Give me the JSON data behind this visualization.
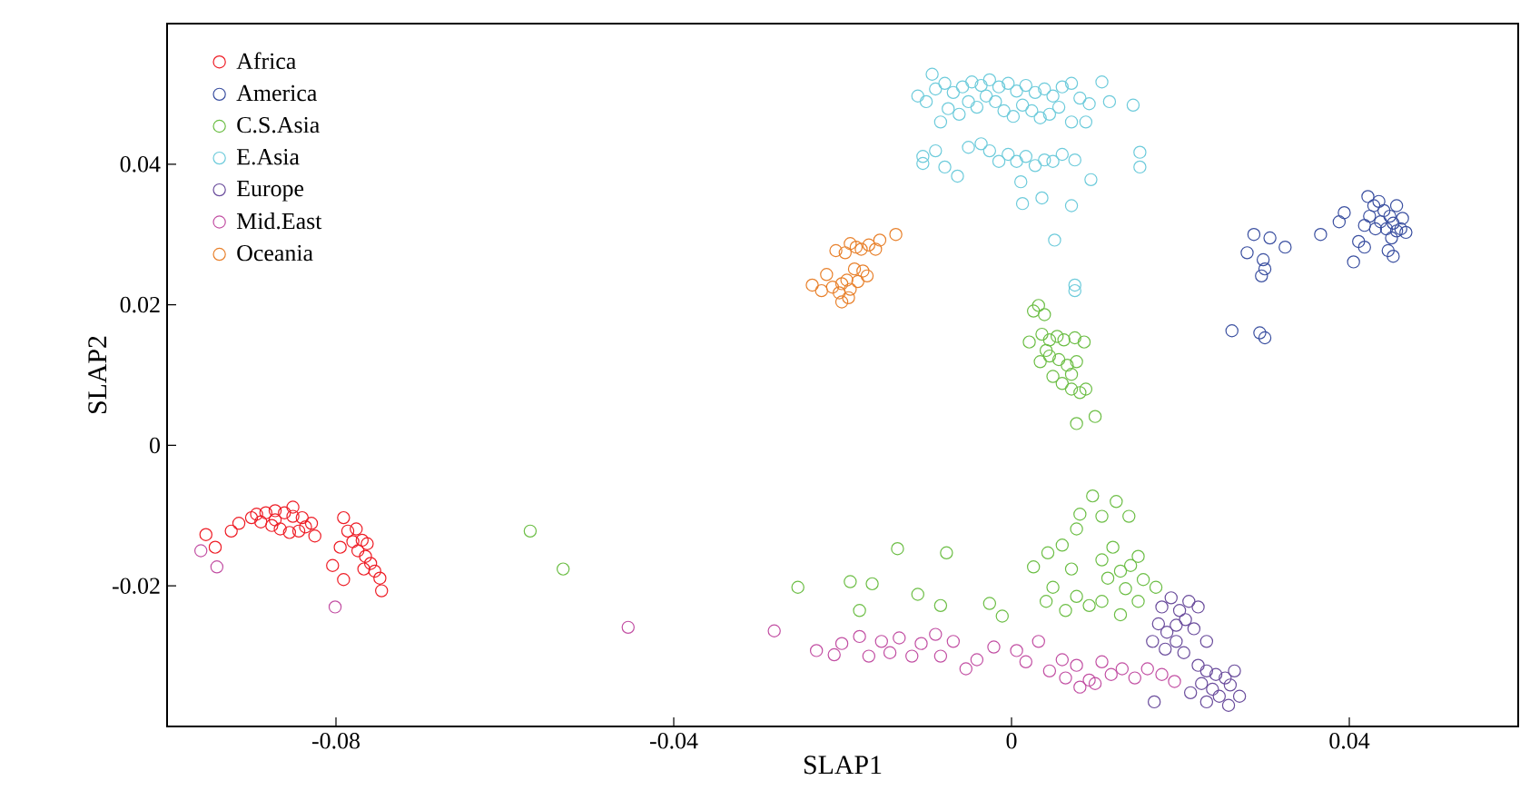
{
  "chart_data": {
    "type": "scatter",
    "xlabel": "SLAP1",
    "ylabel": "SLAP2",
    "xlim": [
      -0.1,
      0.06
    ],
    "ylim": [
      -0.04,
      0.06
    ],
    "xticks": [
      -0.08,
      -0.04,
      0,
      0.04
    ],
    "yticks": [
      -0.02,
      0,
      0.02,
      0.04
    ],
    "marker": "circle",
    "legend": "top left",
    "grid": false,
    "series": [
      {
        "name": "Africa",
        "color": "#ee1c25",
        "x": [
          -0.0954,
          -0.0943,
          -0.0924,
          -0.0915,
          -0.09,
          -0.0894,
          -0.0883,
          -0.0872,
          -0.0861,
          -0.0851,
          -0.084,
          -0.0829,
          -0.0889,
          -0.0876,
          -0.0866,
          -0.0855,
          -0.0844,
          -0.0836,
          -0.0851,
          -0.0872,
          -0.0825,
          -0.0804,
          -0.0791,
          -0.0786,
          -0.078,
          -0.0774,
          -0.0765,
          -0.0759,
          -0.0754,
          -0.0748,
          -0.0746,
          -0.0769,
          -0.0763,
          -0.0795,
          -0.0791,
          -0.0776,
          -0.0767
        ],
        "values": [
          -0.0127,
          -0.0145,
          -0.0122,
          -0.0111,
          -0.0103,
          -0.0098,
          -0.0096,
          -0.0093,
          -0.0096,
          -0.0101,
          -0.0103,
          -0.0111,
          -0.0109,
          -0.0114,
          -0.0119,
          -0.0124,
          -0.0122,
          -0.0116,
          -0.0088,
          -0.0106,
          -0.0129,
          -0.0171,
          -0.0103,
          -0.0122,
          -0.0137,
          -0.015,
          -0.0158,
          -0.0168,
          -0.0179,
          -0.0189,
          -0.0207,
          -0.0135,
          -0.014,
          -0.0145,
          -0.0191,
          -0.0119,
          -0.0176
        ]
      },
      {
        "name": "America",
        "color": "#3a4fa0",
        "x": [
          0.0261,
          0.0294,
          0.03,
          0.0296,
          0.03,
          0.0279,
          0.0287,
          0.0306,
          0.0298,
          0.0324,
          0.0366,
          0.0388,
          0.0394,
          0.0405,
          0.0418,
          0.0424,
          0.0429,
          0.0435,
          0.0441,
          0.0448,
          0.0452,
          0.0456,
          0.0461,
          0.0467,
          0.0444,
          0.0431,
          0.0418,
          0.0437,
          0.045,
          0.0456,
          0.0463,
          0.0422,
          0.0446,
          0.0452,
          0.0411
        ],
        "values": [
          0.0163,
          0.016,
          0.0153,
          0.0241,
          0.0251,
          0.0274,
          0.03,
          0.0295,
          0.0264,
          0.0282,
          0.03,
          0.0318,
          0.0331,
          0.0261,
          0.0282,
          0.0326,
          0.0341,
          0.0347,
          0.0334,
          0.0326,
          0.0316,
          0.0305,
          0.0308,
          0.0303,
          0.0308,
          0.0308,
          0.0313,
          0.0318,
          0.0295,
          0.0341,
          0.0323,
          0.0354,
          0.0277,
          0.0269,
          0.029
        ]
      },
      {
        "name": "C.S.Asia",
        "color": "#6cbe45",
        "x": [
          0.0026,
          0.0032,
          0.0039,
          0.0021,
          0.0036,
          0.0045,
          0.0054,
          0.0062,
          0.0075,
          0.0086,
          0.0034,
          0.0045,
          0.0056,
          0.0066,
          0.0077,
          0.0049,
          0.006,
          0.0071,
          0.0081,
          0.0088,
          0.0077,
          0.0099,
          0.0041,
          0.0071,
          -0.057,
          -0.0531,
          -0.0253,
          -0.0191,
          -0.0165,
          -0.018,
          -0.0135,
          -0.0077,
          -0.0111,
          -0.0084,
          -0.0026,
          -0.0011,
          0.0026,
          0.0043,
          0.006,
          0.0077,
          0.0096,
          0.0081,
          0.0107,
          0.0124,
          0.0139,
          0.0049,
          0.0041,
          0.0064,
          0.0077,
          0.0092,
          0.0114,
          0.0129,
          0.0141,
          0.0156,
          0.0107,
          0.012,
          0.0135,
          0.015,
          0.0171,
          0.0107,
          0.0071,
          0.015,
          0.0129
        ],
        "values": [
          0.0191,
          0.0199,
          0.0186,
          0.0147,
          0.0158,
          0.015,
          0.0155,
          0.015,
          0.0153,
          0.0147,
          0.0119,
          0.0127,
          0.0122,
          0.0114,
          0.0119,
          0.0098,
          0.0088,
          0.008,
          0.0075,
          0.008,
          0.0031,
          0.0041,
          0.0135,
          0.0101,
          -0.0122,
          -0.0176,
          -0.0202,
          -0.0194,
          -0.0197,
          -0.0235,
          -0.0147,
          -0.0153,
          -0.0212,
          -0.0228,
          -0.0225,
          -0.0243,
          -0.0173,
          -0.0153,
          -0.0142,
          -0.0119,
          -0.0072,
          -0.0098,
          -0.0101,
          -0.008,
          -0.0101,
          -0.0202,
          -0.0222,
          -0.0235,
          -0.0215,
          -0.0228,
          -0.0189,
          -0.0179,
          -0.0171,
          -0.0191,
          -0.0163,
          -0.0145,
          -0.0204,
          -0.0222,
          -0.0202,
          -0.0222,
          -0.0176,
          -0.0158,
          -0.0241
        ]
      },
      {
        "name": "E.Asia",
        "color": "#6dcbdb",
        "x": [
          -0.0111,
          -0.0101,
          -0.009,
          -0.0079,
          -0.0069,
          -0.0058,
          -0.0047,
          -0.0036,
          -0.0026,
          -0.0015,
          -0.0004,
          0.0006,
          0.0017,
          0.0028,
          0.0039,
          0.0049,
          0.006,
          0.0071,
          0.0081,
          0.0092,
          0.0107,
          0.0116,
          0.0144,
          -0.0094,
          -0.0084,
          -0.0075,
          -0.0062,
          -0.0051,
          -0.0041,
          -0.003,
          -0.0019,
          -0.0009,
          0.0002,
          0.0013,
          0.0024,
          0.0034,
          0.0045,
          0.0056,
          0.0071,
          0.0088,
          -0.0105,
          -0.0105,
          -0.009,
          -0.0079,
          -0.0064,
          -0.0051,
          -0.0036,
          -0.0026,
          -0.0015,
          -0.0004,
          0.0006,
          0.0017,
          0.0028,
          0.0039,
          0.0049,
          0.006,
          0.0075,
          0.0094,
          0.0152,
          0.0152,
          0.0011,
          0.0013,
          0.0036,
          0.0071,
          0.0051,
          0.0075,
          0.0075
        ],
        "values": [
          0.0497,
          0.0489,
          0.0507,
          0.0515,
          0.0502,
          0.051,
          0.0517,
          0.0512,
          0.052,
          0.051,
          0.0515,
          0.0504,
          0.0512,
          0.0502,
          0.0507,
          0.0497,
          0.051,
          0.0515,
          0.0494,
          0.0486,
          0.0517,
          0.0489,
          0.0484,
          0.0528,
          0.046,
          0.0479,
          0.0471,
          0.0489,
          0.0481,
          0.0497,
          0.0489,
          0.0476,
          0.0468,
          0.0484,
          0.0476,
          0.0466,
          0.0471,
          0.0481,
          0.046,
          0.046,
          0.0411,
          0.0401,
          0.0419,
          0.0396,
          0.0383,
          0.0424,
          0.0429,
          0.0419,
          0.0404,
          0.0414,
          0.0404,
          0.0411,
          0.0398,
          0.0406,
          0.0404,
          0.0414,
          0.0406,
          0.0378,
          0.0417,
          0.0396,
          0.0375,
          0.0344,
          0.0352,
          0.0341,
          0.0292,
          0.0228,
          0.022
        ]
      },
      {
        "name": "Europe",
        "color": "#6a4c9c",
        "x": [
          0.0178,
          0.0189,
          0.0199,
          0.021,
          0.0221,
          0.0174,
          0.0184,
          0.0195,
          0.0206,
          0.0216,
          0.0167,
          0.0182,
          0.0195,
          0.0204,
          0.0231,
          0.0221,
          0.0231,
          0.0242,
          0.0253,
          0.0264,
          0.0225,
          0.0238,
          0.0246,
          0.0259,
          0.027,
          0.0212,
          0.0231,
          0.0257,
          0.0169
        ],
        "values": [
          -0.023,
          -0.0217,
          -0.0235,
          -0.0222,
          -0.023,
          -0.0254,
          -0.0266,
          -0.0256,
          -0.0248,
          -0.0261,
          -0.0279,
          -0.029,
          -0.0279,
          -0.0295,
          -0.0279,
          -0.0313,
          -0.0321,
          -0.0326,
          -0.0331,
          -0.0321,
          -0.0339,
          -0.0347,
          -0.0357,
          -0.0341,
          -0.0357,
          -0.0352,
          -0.0365,
          -0.037,
          -0.0365
        ]
      },
      {
        "name": "Mid.East",
        "color": "#c24fa3",
        "x": [
          -0.096,
          -0.0941,
          -0.0801,
          -0.0454,
          -0.0281,
          -0.0231,
          -0.021,
          -0.0201,
          -0.018,
          -0.0169,
          -0.0154,
          -0.0144,
          -0.0133,
          -0.0118,
          -0.0107,
          -0.009,
          -0.0084,
          -0.0069,
          -0.0054,
          -0.0041,
          -0.0021,
          0.0006,
          0.0017,
          0.0032,
          0.0045,
          0.006,
          0.0077,
          0.0092,
          0.0107,
          0.0118,
          0.0131,
          0.0146,
          0.0161,
          0.0178,
          0.0193,
          0.0081,
          0.0099,
          0.0064
        ],
        "values": [
          -0.015,
          -0.0173,
          -0.023,
          -0.0259,
          -0.0264,
          -0.0292,
          -0.0298,
          -0.0282,
          -0.0272,
          -0.03,
          -0.0279,
          -0.0295,
          -0.0274,
          -0.03,
          -0.0282,
          -0.0269,
          -0.03,
          -0.0279,
          -0.0318,
          -0.0305,
          -0.0287,
          -0.0292,
          -0.0308,
          -0.0279,
          -0.0321,
          -0.0305,
          -0.0313,
          -0.0334,
          -0.0308,
          -0.0326,
          -0.0318,
          -0.0331,
          -0.0318,
          -0.0326,
          -0.0336,
          -0.0344,
          -0.0339,
          -0.0331
        ]
      },
      {
        "name": "Oceania",
        "color": "#e8802b",
        "x": [
          -0.0236,
          -0.0225,
          -0.0212,
          -0.0201,
          -0.0195,
          -0.0204,
          -0.0193,
          -0.0219,
          -0.0208,
          -0.0197,
          -0.0191,
          -0.0184,
          -0.0178,
          -0.0169,
          -0.0161,
          -0.0156,
          -0.0137,
          -0.0186,
          -0.0176,
          -0.0182,
          -0.0171,
          -0.0201,
          -0.0191
        ],
        "values": [
          0.0228,
          0.022,
          0.0225,
          0.023,
          0.0235,
          0.0217,
          0.021,
          0.0243,
          0.0277,
          0.0274,
          0.0287,
          0.0282,
          0.0279,
          0.0285,
          0.0279,
          0.0292,
          0.03,
          0.0251,
          0.0248,
          0.0233,
          0.0241,
          0.0204,
          0.0222
        ]
      }
    ]
  }
}
